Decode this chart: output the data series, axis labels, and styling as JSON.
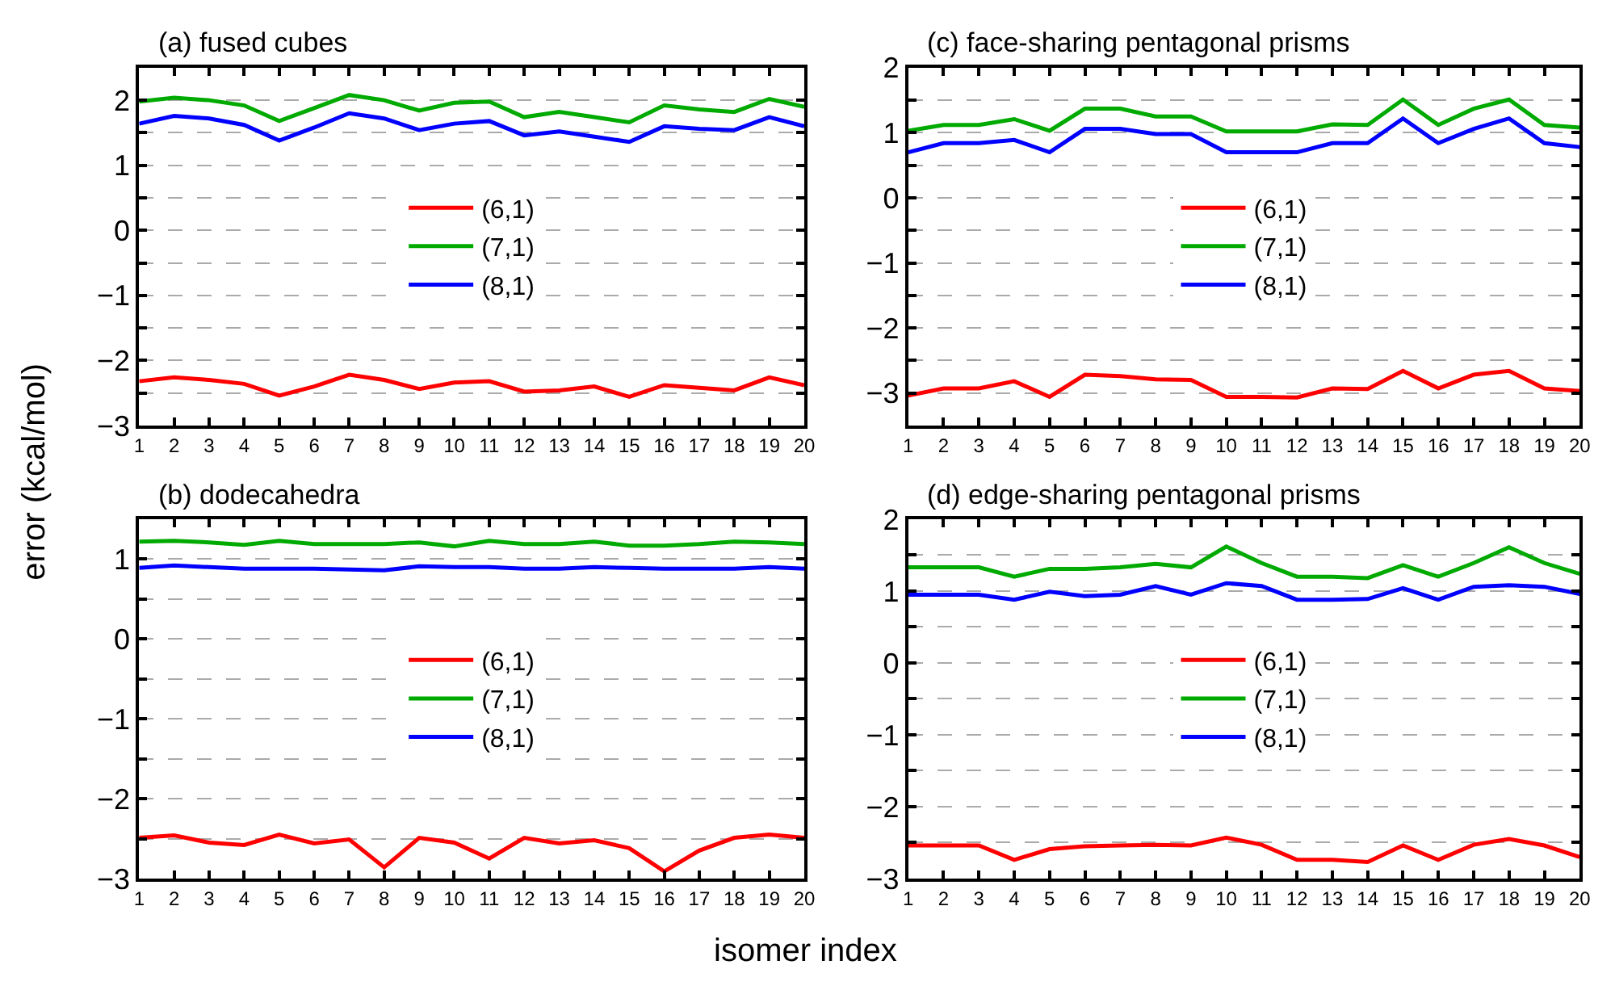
{
  "chart_data": [
    {
      "type": "line",
      "title": "(a) fused cubes",
      "ylabel": "error (kcal/mol)",
      "x": [
        1,
        2,
        3,
        4,
        5,
        6,
        7,
        8,
        9,
        10,
        11,
        12,
        13,
        14,
        15,
        16,
        17,
        18,
        19,
        20
      ],
      "xlim": [
        1,
        20
      ],
      "xticks": [
        1,
        2,
        3,
        4,
        5,
        6,
        7,
        8,
        9,
        10,
        11,
        12,
        13,
        14,
        15,
        16,
        17,
        18,
        19,
        20
      ],
      "ylim": [
        -3,
        2.5
      ],
      "yticks": [
        -3,
        {
          "value": -2.5,
          "label": null
        },
        -2,
        {
          "value": -1.5,
          "label": null
        },
        -1,
        {
          "value": -0.5,
          "label": null
        },
        0,
        {
          "value": 0.5,
          "label": null
        },
        1,
        {
          "value": 1.5,
          "label": null
        },
        2
      ],
      "grid": "y",
      "legend": "center",
      "marker": "none",
      "line_style": "solid",
      "series": [
        {
          "name": "(6,1)",
          "color": "#ff0000",
          "values": [
            -2.32,
            -2.26,
            -2.3,
            -2.36,
            -2.54,
            -2.4,
            -2.22,
            -2.3,
            -2.44,
            -2.34,
            -2.32,
            -2.48,
            -2.46,
            -2.4,
            -2.56,
            -2.38,
            -2.42,
            -2.46,
            -2.26,
            -2.38
          ]
        },
        {
          "name": "(7,1)",
          "color": "#00aa00",
          "values": [
            1.98,
            2.04,
            2.0,
            1.92,
            1.68,
            1.88,
            2.08,
            2.0,
            1.84,
            1.96,
            1.98,
            1.74,
            1.82,
            1.74,
            1.66,
            1.92,
            1.86,
            1.82,
            2.02,
            1.9
          ]
        },
        {
          "name": "(8,1)",
          "color": "#0000ff",
          "values": [
            1.64,
            1.76,
            1.72,
            1.62,
            1.38,
            1.58,
            1.8,
            1.72,
            1.54,
            1.64,
            1.68,
            1.46,
            1.52,
            1.44,
            1.36,
            1.6,
            1.56,
            1.54,
            1.74,
            1.6
          ]
        }
      ]
    },
    {
      "type": "line",
      "title": "(c) face-sharing pentagonal prisms",
      "x": [
        1,
        2,
        3,
        4,
        5,
        6,
        7,
        8,
        9,
        10,
        11,
        12,
        13,
        14,
        15,
        16,
        17,
        18,
        19,
        20
      ],
      "xlim": [
        1,
        20
      ],
      "xticks": [
        1,
        2,
        3,
        4,
        5,
        6,
        7,
        8,
        9,
        10,
        11,
        12,
        13,
        14,
        15,
        16,
        17,
        18,
        19,
        20
      ],
      "ylim": [
        -3.5,
        2
      ],
      "yticks": [
        {
          "value": -3.5,
          "label": null
        },
        -3,
        {
          "value": -2.5,
          "label": null
        },
        -2,
        {
          "value": -1.5,
          "label": null
        },
        -1,
        {
          "value": -0.5,
          "label": null
        },
        0,
        {
          "value": 0.5,
          "label": null
        },
        1,
        {
          "value": 1.5,
          "label": null
        },
        2
      ],
      "grid": "y",
      "legend": "center",
      "marker": "none",
      "line_style": "solid",
      "series": [
        {
          "name": "(6,1)",
          "color": "#ff0000",
          "values": [
            -3.04,
            -2.93,
            -2.93,
            -2.82,
            -3.06,
            -2.72,
            -2.74,
            -2.79,
            -2.8,
            -3.06,
            -3.06,
            -3.07,
            -2.93,
            -2.94,
            -2.66,
            -2.93,
            -2.72,
            -2.66,
            -2.93,
            -2.97
          ]
        },
        {
          "name": "(7,1)",
          "color": "#00aa00",
          "values": [
            1.03,
            1.12,
            1.12,
            1.21,
            1.03,
            1.37,
            1.37,
            1.25,
            1.25,
            1.02,
            1.02,
            1.02,
            1.13,
            1.12,
            1.51,
            1.12,
            1.37,
            1.51,
            1.12,
            1.08
          ]
        },
        {
          "name": "(8,1)",
          "color": "#0000ff",
          "values": [
            0.7,
            0.84,
            0.84,
            0.89,
            0.7,
            1.06,
            1.06,
            0.98,
            0.98,
            0.7,
            0.7,
            0.7,
            0.84,
            0.84,
            1.22,
            0.84,
            1.06,
            1.22,
            0.84,
            0.78
          ]
        }
      ]
    },
    {
      "type": "line",
      "title": "(b) dodecahedra",
      "xlabel": "isomer index",
      "x": [
        1,
        2,
        3,
        4,
        5,
        6,
        7,
        8,
        9,
        10,
        11,
        12,
        13,
        14,
        15,
        16,
        17,
        18,
        19,
        20
      ],
      "xlim": [
        1,
        20
      ],
      "xticks": [
        1,
        2,
        3,
        4,
        5,
        6,
        7,
        8,
        9,
        10,
        11,
        12,
        13,
        14,
        15,
        16,
        17,
        18,
        19,
        20
      ],
      "ylim": [
        -3,
        1.5
      ],
      "yticks": [
        -3,
        {
          "value": -2.5,
          "label": null
        },
        -2,
        {
          "value": -1.5,
          "label": null
        },
        -1,
        {
          "value": -0.5,
          "label": null
        },
        0,
        {
          "value": 0.5,
          "label": null
        },
        1
      ],
      "grid": "y",
      "legend": "center",
      "marker": "none",
      "line_style": "solid",
      "series": [
        {
          "name": "(6,1)",
          "color": "#ff0000",
          "values": [
            -2.49,
            -2.46,
            -2.55,
            -2.58,
            -2.45,
            -2.56,
            -2.51,
            -2.86,
            -2.49,
            -2.55,
            -2.75,
            -2.49,
            -2.56,
            -2.52,
            -2.62,
            -2.91,
            -2.65,
            -2.49,
            -2.45,
            -2.49
          ]
        },
        {
          "name": "(7,1)",
          "color": "#00aa00",
          "values": [
            1.22,
            1.23,
            1.21,
            1.18,
            1.23,
            1.19,
            1.19,
            1.19,
            1.21,
            1.16,
            1.23,
            1.19,
            1.19,
            1.22,
            1.17,
            1.17,
            1.19,
            1.22,
            1.21,
            1.19
          ]
        },
        {
          "name": "(8,1)",
          "color": "#0000ff",
          "values": [
            0.89,
            0.92,
            0.9,
            0.88,
            0.88,
            0.88,
            0.87,
            0.86,
            0.91,
            0.9,
            0.9,
            0.88,
            0.88,
            0.9,
            0.89,
            0.88,
            0.88,
            0.88,
            0.9,
            0.88
          ]
        }
      ]
    },
    {
      "type": "line",
      "title": "(d) edge-sharing pentagonal prisms",
      "x": [
        1,
        2,
        3,
        4,
        5,
        6,
        7,
        8,
        9,
        10,
        11,
        12,
        13,
        14,
        15,
        16,
        17,
        18,
        19,
        20
      ],
      "xlim": [
        1,
        20
      ],
      "xticks": [
        1,
        2,
        3,
        4,
        5,
        6,
        7,
        8,
        9,
        10,
        11,
        12,
        13,
        14,
        15,
        16,
        17,
        18,
        19,
        20
      ],
      "ylim": [
        -3,
        2
      ],
      "yticks": [
        -3,
        {
          "value": -2.5,
          "label": null
        },
        -2,
        {
          "value": -1.5,
          "label": null
        },
        -1,
        {
          "value": -0.5,
          "label": null
        },
        0,
        {
          "value": 0.5,
          "label": null
        },
        1,
        {
          "value": 1.5,
          "label": null
        },
        2
      ],
      "grid": "y",
      "legend": "center",
      "marker": "none",
      "line_style": "solid",
      "series": [
        {
          "name": "(6,1)",
          "color": "#ff0000",
          "values": [
            -2.54,
            -2.54,
            -2.54,
            -2.74,
            -2.59,
            -2.55,
            -2.54,
            -2.53,
            -2.54,
            -2.43,
            -2.53,
            -2.74,
            -2.74,
            -2.77,
            -2.54,
            -2.74,
            -2.53,
            -2.45,
            -2.54,
            -2.7
          ]
        },
        {
          "name": "(7,1)",
          "color": "#00aa00",
          "values": [
            1.33,
            1.33,
            1.33,
            1.2,
            1.31,
            1.31,
            1.33,
            1.38,
            1.33,
            1.62,
            1.39,
            1.2,
            1.2,
            1.18,
            1.36,
            1.2,
            1.39,
            1.61,
            1.39,
            1.24
          ]
        },
        {
          "name": "(8,1)",
          "color": "#0000ff",
          "values": [
            0.95,
            0.95,
            0.95,
            0.88,
            0.99,
            0.93,
            0.95,
            1.07,
            0.95,
            1.11,
            1.07,
            0.88,
            0.88,
            0.89,
            1.04,
            0.88,
            1.06,
            1.08,
            1.06,
            0.96
          ]
        }
      ]
    }
  ]
}
